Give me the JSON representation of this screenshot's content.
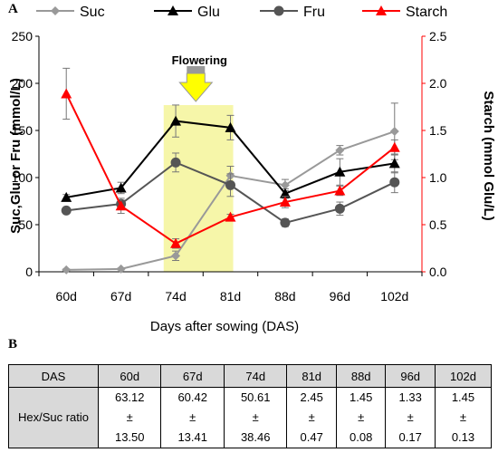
{
  "panel_a_label": "A",
  "panel_b_label": "B",
  "chart_data": {
    "type": "line",
    "categories": [
      "60d",
      "67d",
      "74d",
      "81d",
      "88d",
      "96d",
      "102d"
    ],
    "xlabel": "Days after sowing (DAS)",
    "ylabel_left": "Suc,Glu or Fru (mmol/L)",
    "ylabel_right": "Starch (mmol Glu/L)",
    "ylim_left": [
      0,
      250
    ],
    "ylim_right": [
      0,
      2.5
    ],
    "yticks_left": [
      "0",
      "50",
      "100",
      "150",
      "200",
      "250"
    ],
    "yticks_right": [
      "0.0",
      "0.5",
      "1.0",
      "1.5",
      "2.0",
      "2.5"
    ],
    "legend_position": "top",
    "grid": false,
    "annotation": {
      "text": "Flowering",
      "highlight_range": [
        "74d",
        "81d"
      ],
      "highlight_color": "#f5f59a",
      "arrow_color": "#ffff00"
    },
    "series": [
      {
        "name": "Suc",
        "axis": "left",
        "color": "#999999",
        "marker": "diamond",
        "values": [
          2,
          3,
          17,
          102,
          92,
          129,
          149
        ],
        "errors": [
          1,
          1,
          5,
          10,
          6,
          5,
          30
        ]
      },
      {
        "name": "Glu",
        "axis": "left",
        "color": "#000000",
        "marker": "triangle",
        "values": [
          79,
          89,
          160,
          153,
          83,
          106,
          115
        ],
        "errors": [
          3,
          6,
          17,
          13,
          5,
          14,
          10
        ]
      },
      {
        "name": "Fru",
        "axis": "left",
        "color": "#555555",
        "marker": "circle",
        "values": [
          65,
          72,
          116,
          92,
          52,
          67,
          95
        ],
        "errors": [
          3,
          4,
          10,
          12,
          4,
          7,
          11
        ]
      },
      {
        "name": "Starch",
        "axis": "right",
        "color": "#ff0000",
        "marker": "triangle",
        "values": [
          1.89,
          0.7,
          0.3,
          0.58,
          0.74,
          0.86,
          1.32
        ],
        "errors": [
          0.27,
          0.08,
          0.05,
          0.03,
          0.06,
          0.05,
          0.08
        ]
      }
    ]
  },
  "table": {
    "header_label": "DAS",
    "columns": [
      "60d",
      "67d",
      "74d",
      "81d",
      "88d",
      "96d",
      "102d"
    ],
    "row_label": "Hex/Suc ratio",
    "means": [
      "63.12",
      "60.42",
      "50.61",
      "2.45",
      "1.45",
      "1.33",
      "1.45"
    ],
    "pm": "±",
    "sds": [
      "13.50",
      "13.41",
      "38.46",
      "0.47",
      "0.08",
      "0.17",
      "0.13"
    ]
  }
}
